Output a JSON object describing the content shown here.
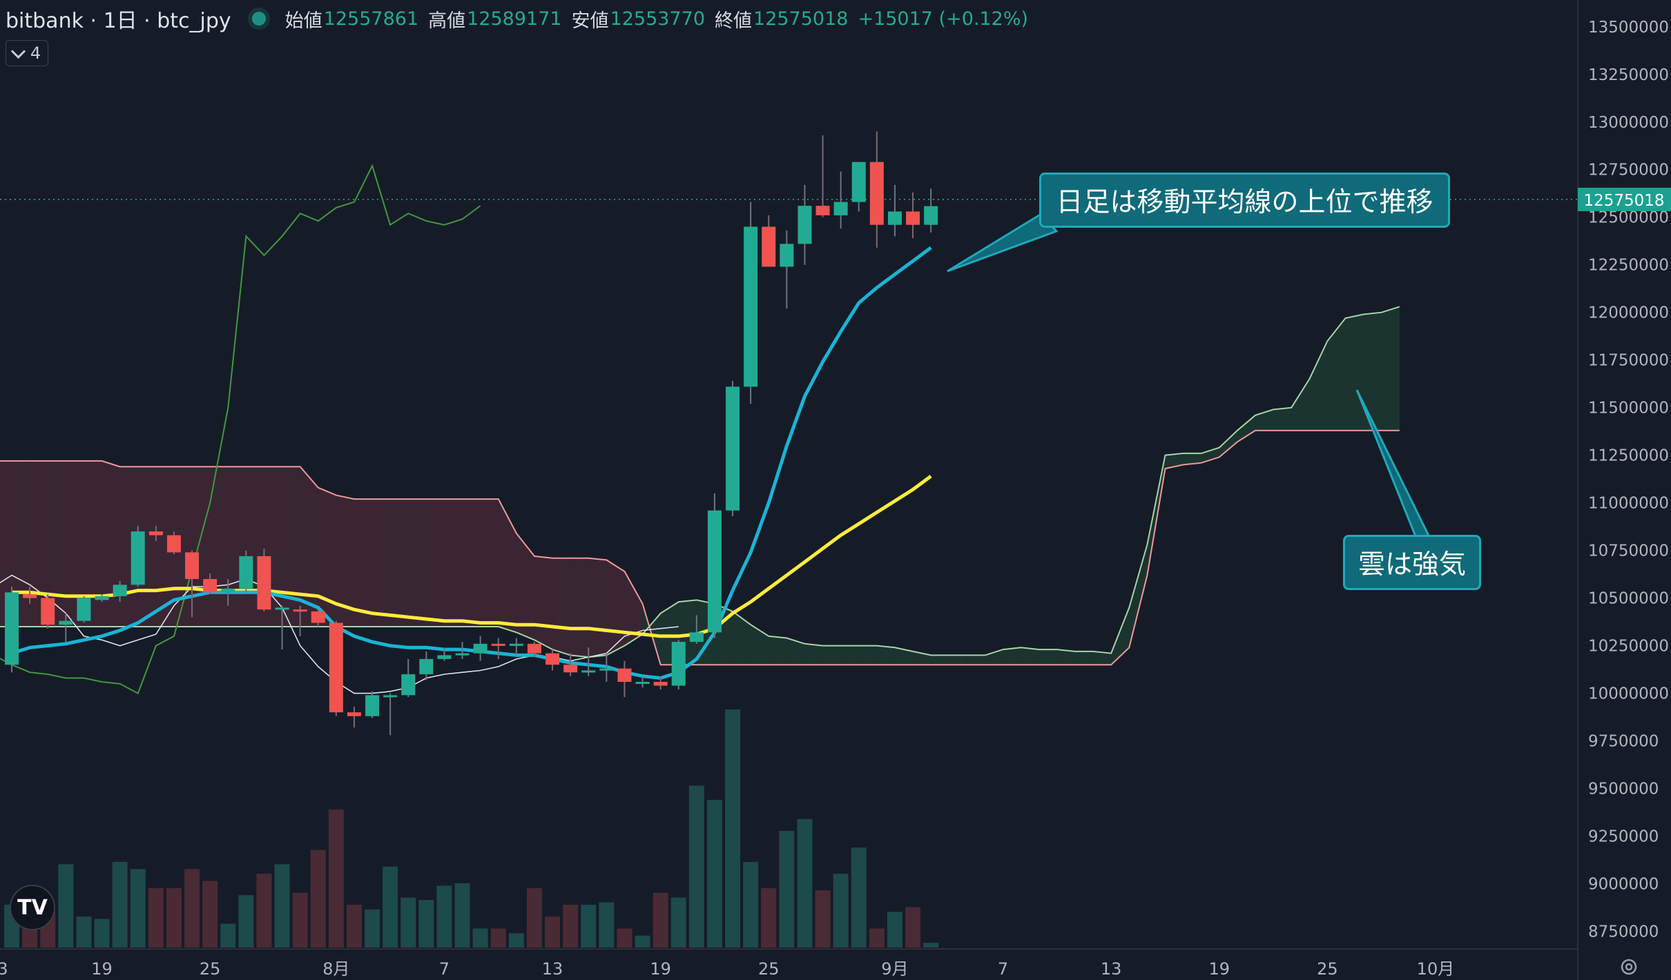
{
  "header": {
    "symbol": "bitbank · 1日 · btc_jpy",
    "open_label": "始値",
    "open": "12557861",
    "high_label": "高値",
    "high": "12589171",
    "low_label": "安値",
    "low": "12553770",
    "close_label": "終値",
    "close": "12575018",
    "change": "+15017 (+0.12%)"
  },
  "indicator_toggle": {
    "count": "4"
  },
  "last_price_label": "12575018",
  "annotations": {
    "ma_note": "日足は移動平均線の上位で推移",
    "cloud_note": "雲は強気"
  },
  "colors": {
    "bg": "#161c27",
    "up": "#22ab94",
    "down": "#f05350",
    "ma_short": "#19b4d6",
    "ma_long": "#ffeb3b",
    "lagging": "#3f9a3f",
    "conversion": "#dfe3ea",
    "cloud_bear": "#3a2533",
    "cloud_bull": "#1c3430",
    "span_a": "#a5d6a7",
    "span_b": "#ef9a9a",
    "callout": "#0f6a79"
  },
  "chart_data": {
    "type": "candlestick",
    "yaxis": {
      "ticks": [
        13500000,
        13250000,
        13000000,
        12750000,
        12500000,
        12250000,
        12000000,
        11750000,
        11500000,
        11250000,
        11000000,
        10750000,
        10500000,
        10250000,
        10000000,
        9750000,
        9500000,
        9250000,
        9000000,
        8750000
      ],
      "range": [
        8730000,
        13550000
      ]
    },
    "xaxis": {
      "ticks": [
        {
          "i": -0.5,
          "label": "3"
        },
        {
          "i": 5,
          "label": "19"
        },
        {
          "i": 11,
          "label": "25"
        },
        {
          "i": 18,
          "label": "8月"
        },
        {
          "i": 24,
          "label": "7"
        },
        {
          "i": 30,
          "label": "13"
        },
        {
          "i": 36,
          "label": "19"
        },
        {
          "i": 42,
          "label": "25"
        },
        {
          "i": 49,
          "label": "9月"
        },
        {
          "i": 55,
          "label": "7"
        },
        {
          "i": 61,
          "label": "13"
        },
        {
          "i": 67,
          "label": "19"
        },
        {
          "i": 73,
          "label": "25"
        },
        {
          "i": 79,
          "label": "10月"
        }
      ],
      "range": [
        -0.5,
        83.5
      ]
    },
    "candles": [
      {
        "o": 10150000,
        "h": 10560000,
        "l": 10110000,
        "c": 10530000,
        "v": 0.18
      },
      {
        "o": 10520000,
        "h": 10560000,
        "l": 10470000,
        "c": 10500000,
        "v": 0.12
      },
      {
        "o": 10500000,
        "h": 10520000,
        "l": 10340000,
        "c": 10360000,
        "v": 0.15
      },
      {
        "o": 10360000,
        "h": 10420000,
        "l": 10270000,
        "c": 10380000,
        "v": 0.35
      },
      {
        "o": 10380000,
        "h": 10510000,
        "l": 10370000,
        "c": 10500000,
        "v": 0.13
      },
      {
        "o": 10490000,
        "h": 10520000,
        "l": 10480000,
        "c": 10510000,
        "v": 0.12
      },
      {
        "o": 10510000,
        "h": 10590000,
        "l": 10480000,
        "c": 10570000,
        "v": 0.36
      },
      {
        "o": 10570000,
        "h": 10880000,
        "l": 10560000,
        "c": 10850000,
        "v": 0.33
      },
      {
        "o": 10850000,
        "h": 10880000,
        "l": 10800000,
        "c": 10830000,
        "v": 0.25
      },
      {
        "o": 10830000,
        "h": 10850000,
        "l": 10730000,
        "c": 10740000,
        "v": 0.25
      },
      {
        "o": 10740000,
        "h": 10750000,
        "l": 10400000,
        "c": 10600000,
        "v": 0.33
      },
      {
        "o": 10600000,
        "h": 10630000,
        "l": 10520000,
        "c": 10530000,
        "v": 0.28
      },
      {
        "o": 10530000,
        "h": 10600000,
        "l": 10460000,
        "c": 10550000,
        "v": 0.1
      },
      {
        "o": 10550000,
        "h": 10750000,
        "l": 10530000,
        "c": 10720000,
        "v": 0.22
      },
      {
        "o": 10720000,
        "h": 10760000,
        "l": 10430000,
        "c": 10440000,
        "v": 0.31
      },
      {
        "o": 10440000,
        "h": 10460000,
        "l": 10230000,
        "c": 10450000,
        "v": 0.35
      },
      {
        "o": 10440000,
        "h": 10460000,
        "l": 10300000,
        "c": 10430000,
        "v": 0.23
      },
      {
        "o": 10430000,
        "h": 10440000,
        "l": 10350000,
        "c": 10370000,
        "v": 0.41
      },
      {
        "o": 10370000,
        "h": 10380000,
        "l": 9880000,
        "c": 9900000,
        "v": 0.58
      },
      {
        "o": 9900000,
        "h": 9930000,
        "l": 9820000,
        "c": 9880000,
        "v": 0.18
      },
      {
        "o": 9880000,
        "h": 10010000,
        "l": 9870000,
        "c": 9990000,
        "v": 0.16
      },
      {
        "o": 9990000,
        "h": 10000000,
        "l": 9780000,
        "c": 9990000,
        "v": 0.34
      },
      {
        "o": 9990000,
        "h": 10180000,
        "l": 9980000,
        "c": 10100000,
        "v": 0.21
      },
      {
        "o": 10100000,
        "h": 10220000,
        "l": 10070000,
        "c": 10180000,
        "v": 0.2
      },
      {
        "o": 10180000,
        "h": 10240000,
        "l": 10170000,
        "c": 10200000,
        "v": 0.26
      },
      {
        "o": 10200000,
        "h": 10270000,
        "l": 10180000,
        "c": 10210000,
        "v": 0.27
      },
      {
        "o": 10210000,
        "h": 10300000,
        "l": 10170000,
        "c": 10260000,
        "v": 0.08
      },
      {
        "o": 10260000,
        "h": 10290000,
        "l": 10180000,
        "c": 10250000,
        "v": 0.08
      },
      {
        "o": 10250000,
        "h": 10290000,
        "l": 10200000,
        "c": 10260000,
        "v": 0.06
      },
      {
        "o": 10260000,
        "h": 10270000,
        "l": 10190000,
        "c": 10210000,
        "v": 0.25
      },
      {
        "o": 10210000,
        "h": 10230000,
        "l": 10120000,
        "c": 10150000,
        "v": 0.13
      },
      {
        "o": 10150000,
        "h": 10210000,
        "l": 10090000,
        "c": 10110000,
        "v": 0.18
      },
      {
        "o": 10110000,
        "h": 10240000,
        "l": 10090000,
        "c": 10120000,
        "v": 0.18
      },
      {
        "o": 10120000,
        "h": 10210000,
        "l": 10060000,
        "c": 10130000,
        "v": 0.19
      },
      {
        "o": 10130000,
        "h": 10170000,
        "l": 9980000,
        "c": 10060000,
        "v": 0.08
      },
      {
        "o": 10060000,
        "h": 10090000,
        "l": 10030000,
        "c": 10060000,
        "v": 0.05
      },
      {
        "o": 10060000,
        "h": 10090000,
        "l": 10020000,
        "c": 10040000,
        "v": 0.23
      },
      {
        "o": 10040000,
        "h": 10280000,
        "l": 10020000,
        "c": 10270000,
        "v": 0.21
      },
      {
        "o": 10270000,
        "h": 10410000,
        "l": 10260000,
        "c": 10320000,
        "v": 0.68
      },
      {
        "o": 10320000,
        "h": 11050000,
        "l": 10290000,
        "c": 10960000,
        "v": 0.62
      },
      {
        "o": 10960000,
        "h": 11640000,
        "l": 10930000,
        "c": 11610000,
        "v": 1.0
      },
      {
        "o": 11610000,
        "h": 12580000,
        "l": 11520000,
        "c": 12450000,
        "v": 0.36
      },
      {
        "o": 12450000,
        "h": 12510000,
        "l": 12240000,
        "c": 12240000,
        "v": 0.25
      },
      {
        "o": 12240000,
        "h": 12430000,
        "l": 12020000,
        "c": 12360000,
        "v": 0.49
      },
      {
        "o": 12360000,
        "h": 12670000,
        "l": 12250000,
        "c": 12560000,
        "v": 0.54
      },
      {
        "o": 12560000,
        "h": 12930000,
        "l": 12500000,
        "c": 12510000,
        "v": 0.24
      },
      {
        "o": 12510000,
        "h": 12740000,
        "l": 12440000,
        "c": 12580000,
        "v": 0.31
      },
      {
        "o": 12580000,
        "h": 12780000,
        "l": 12530000,
        "c": 12790000,
        "v": 0.42
      },
      {
        "o": 12790000,
        "h": 12950000,
        "l": 12340000,
        "c": 12460000,
        "v": 0.08
      },
      {
        "o": 12460000,
        "h": 12670000,
        "l": 12400000,
        "c": 12530000,
        "v": 0.15
      },
      {
        "o": 12530000,
        "h": 12630000,
        "l": 12390000,
        "c": 12460000,
        "v": 0.17
      },
      {
        "o": 12460000,
        "h": 12650000,
        "l": 12420000,
        "c": 12558000,
        "v": 0.02
      }
    ],
    "ma_short": [
      10210000,
      10240000,
      10250000,
      10260000,
      10280000,
      10300000,
      10330000,
      10370000,
      10430000,
      10490000,
      10510000,
      10530000,
      10530000,
      10530000,
      10530000,
      10510000,
      10490000,
      10450000,
      10350000,
      10300000,
      10270000,
      10250000,
      10240000,
      10240000,
      10230000,
      10230000,
      10220000,
      10210000,
      10200000,
      10200000,
      10180000,
      10160000,
      10150000,
      10140000,
      10110000,
      10090000,
      10080000,
      10110000,
      10180000,
      10320000,
      10540000,
      10740000,
      11000000,
      11300000,
      11560000,
      11740000,
      11900000,
      12050000,
      12130000,
      12200000,
      12270000,
      12340000
    ],
    "ma_long": [
      10530000,
      10530000,
      10520000,
      10510000,
      10510000,
      10510000,
      10520000,
      10540000,
      10540000,
      10550000,
      10550000,
      10540000,
      10540000,
      10540000,
      10540000,
      10530000,
      10520000,
      10510000,
      10470000,
      10440000,
      10420000,
      10410000,
      10400000,
      10390000,
      10380000,
      10380000,
      10370000,
      10370000,
      10360000,
      10360000,
      10350000,
      10340000,
      10340000,
      10330000,
      10320000,
      10310000,
      10300000,
      10300000,
      10310000,
      10340000,
      10420000,
      10480000,
      10550000,
      10620000,
      10690000,
      10760000,
      10830000,
      10890000,
      10950000,
      11010000,
      11070000,
      11140000
    ],
    "conversion_line": [
      10560000,
      10620000,
      10570000,
      10500000,
      10420000,
      10300000,
      10280000,
      10250000,
      10280000,
      10310000,
      10460000,
      10560000,
      10560000,
      10570000,
      10600000,
      10560000,
      10450000,
      10250000,
      10140000,
      10060000,
      10000000,
      10000000,
      10010000,
      10030000,
      10080000,
      10100000,
      10110000,
      10120000,
      10140000,
      10180000,
      10200000,
      10190000,
      10170000,
      10190000,
      10210000,
      10300000,
      10330000,
      10340000,
      10350000
    ],
    "lagging_span": [
      10200000,
      10150000,
      10110000,
      10100000,
      10080000,
      10080000,
      10060000,
      10050000,
      10000000,
      10250000,
      10300000,
      10650000,
      11000000,
      11500000,
      12400000,
      12300000,
      12400000,
      12520000,
      12480000,
      12550000,
      12580000,
      12770000,
      12460000,
      12520000,
      12480000,
      12460000,
      12490000,
      12560000
    ],
    "lagging_start": -1,
    "cloud": {
      "start": -1,
      "span_a": [
        10350000,
        10350000,
        10350000,
        10350000,
        10350000,
        10350000,
        10350000,
        10350000,
        10350000,
        10350000,
        10350000,
        10350000,
        10350000,
        10350000,
        10350000,
        10350000,
        10350000,
        10350000,
        10350000,
        10350000,
        10350000,
        10350000,
        10350000,
        10350000,
        10350000,
        10350000,
        10350000,
        10350000,
        10350000,
        10320000,
        10280000,
        10230000,
        10200000,
        10190000,
        10200000,
        10250000,
        10310000,
        10420000,
        10480000,
        10490000,
        10470000,
        10430000,
        10360000,
        10300000,
        10290000,
        10260000,
        10250000,
        10250000,
        10250000,
        10250000,
        10240000,
        10220000,
        10200000,
        10200000,
        10200000,
        10200000,
        10230000,
        10240000,
        10230000,
        10230000,
        10220000,
        10220000,
        10210000,
        10450000,
        10780000,
        11250000,
        11260000,
        11260000,
        11290000,
        11380000,
        11460000,
        11490000,
        11500000,
        11650000,
        11850000,
        11970000,
        11990000,
        12000000,
        12030000
      ],
      "span_b": [
        11220000,
        11220000,
        11220000,
        11220000,
        11220000,
        11220000,
        11220000,
        11190000,
        11190000,
        11190000,
        11190000,
        11190000,
        11190000,
        11190000,
        11190000,
        11190000,
        11190000,
        11190000,
        11080000,
        11040000,
        11020000,
        11020000,
        11020000,
        11020000,
        11020000,
        11020000,
        11020000,
        11020000,
        11020000,
        10840000,
        10720000,
        10710000,
        10710000,
        10710000,
        10700000,
        10640000,
        10470000,
        10150000,
        10150000,
        10150000,
        10150000,
        10150000,
        10150000,
        10150000,
        10150000,
        10150000,
        10150000,
        10150000,
        10150000,
        10150000,
        10150000,
        10150000,
        10150000,
        10150000,
        10150000,
        10150000,
        10150000,
        10150000,
        10150000,
        10150000,
        10150000,
        10150000,
        10150000,
        10240000,
        10620000,
        11180000,
        11200000,
        11210000,
        11240000,
        11320000,
        11380000,
        11380000,
        11380000,
        11380000,
        11380000,
        11380000,
        11380000,
        11380000,
        11380000
      ]
    }
  }
}
